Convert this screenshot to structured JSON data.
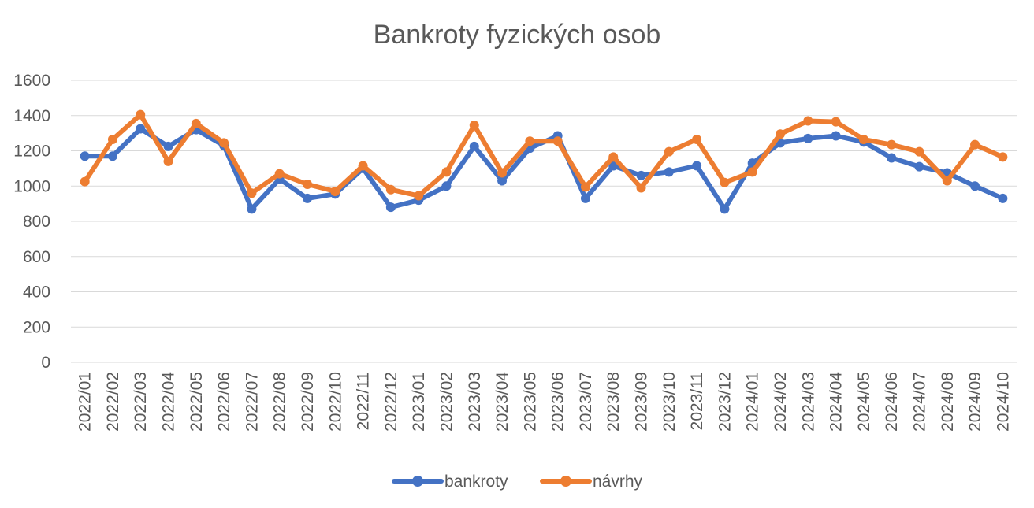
{
  "chart_data": {
    "type": "line",
    "title": "Bankroty fyzických osob",
    "xlabel": "",
    "ylabel": "",
    "ylim": [
      0,
      1600
    ],
    "yticks": [
      0,
      200,
      400,
      600,
      800,
      1000,
      1200,
      1400,
      1600
    ],
    "grid": true,
    "legend_position": "bottom",
    "categories": [
      "2022/01",
      "2022/02",
      "2022/03",
      "2022/04",
      "2022/05",
      "2022/06",
      "2022/07",
      "2022/08",
      "2022/09",
      "2022/10",
      "2022/11",
      "2022/12",
      "2023/01",
      "2023/02",
      "2023/03",
      "2023/04",
      "2023/05",
      "2023/06",
      "2023/07",
      "2023/08",
      "2023/09",
      "2023/10",
      "2023/11",
      "2023/12",
      "2024/01",
      "2024/02",
      "2024/03",
      "2024/04",
      "2024/05",
      "2024/06",
      "2024/07",
      "2024/08",
      "2024/09",
      "2024/10"
    ],
    "series": [
      {
        "name": "bankroty",
        "color": "#4472C4",
        "values": [
          1170,
          1170,
          1325,
          1225,
          1320,
          1230,
          870,
          1040,
          930,
          955,
          1100,
          880,
          920,
          1000,
          1225,
          1030,
          1215,
          1285,
          930,
          1115,
          1060,
          1080,
          1115,
          870,
          1130,
          1245,
          1270,
          1285,
          1250,
          1160,
          1110,
          1075,
          1000,
          930
        ]
      },
      {
        "name": "návrhy",
        "color": "#ED7D31",
        "values": [
          1025,
          1265,
          1405,
          1140,
          1355,
          1245,
          960,
          1070,
          1010,
          970,
          1115,
          980,
          945,
          1080,
          1345,
          1075,
          1255,
          1255,
          995,
          1165,
          990,
          1195,
          1265,
          1020,
          1080,
          1295,
          1370,
          1365,
          1265,
          1235,
          1195,
          1030,
          1235,
          1165
        ]
      }
    ]
  }
}
